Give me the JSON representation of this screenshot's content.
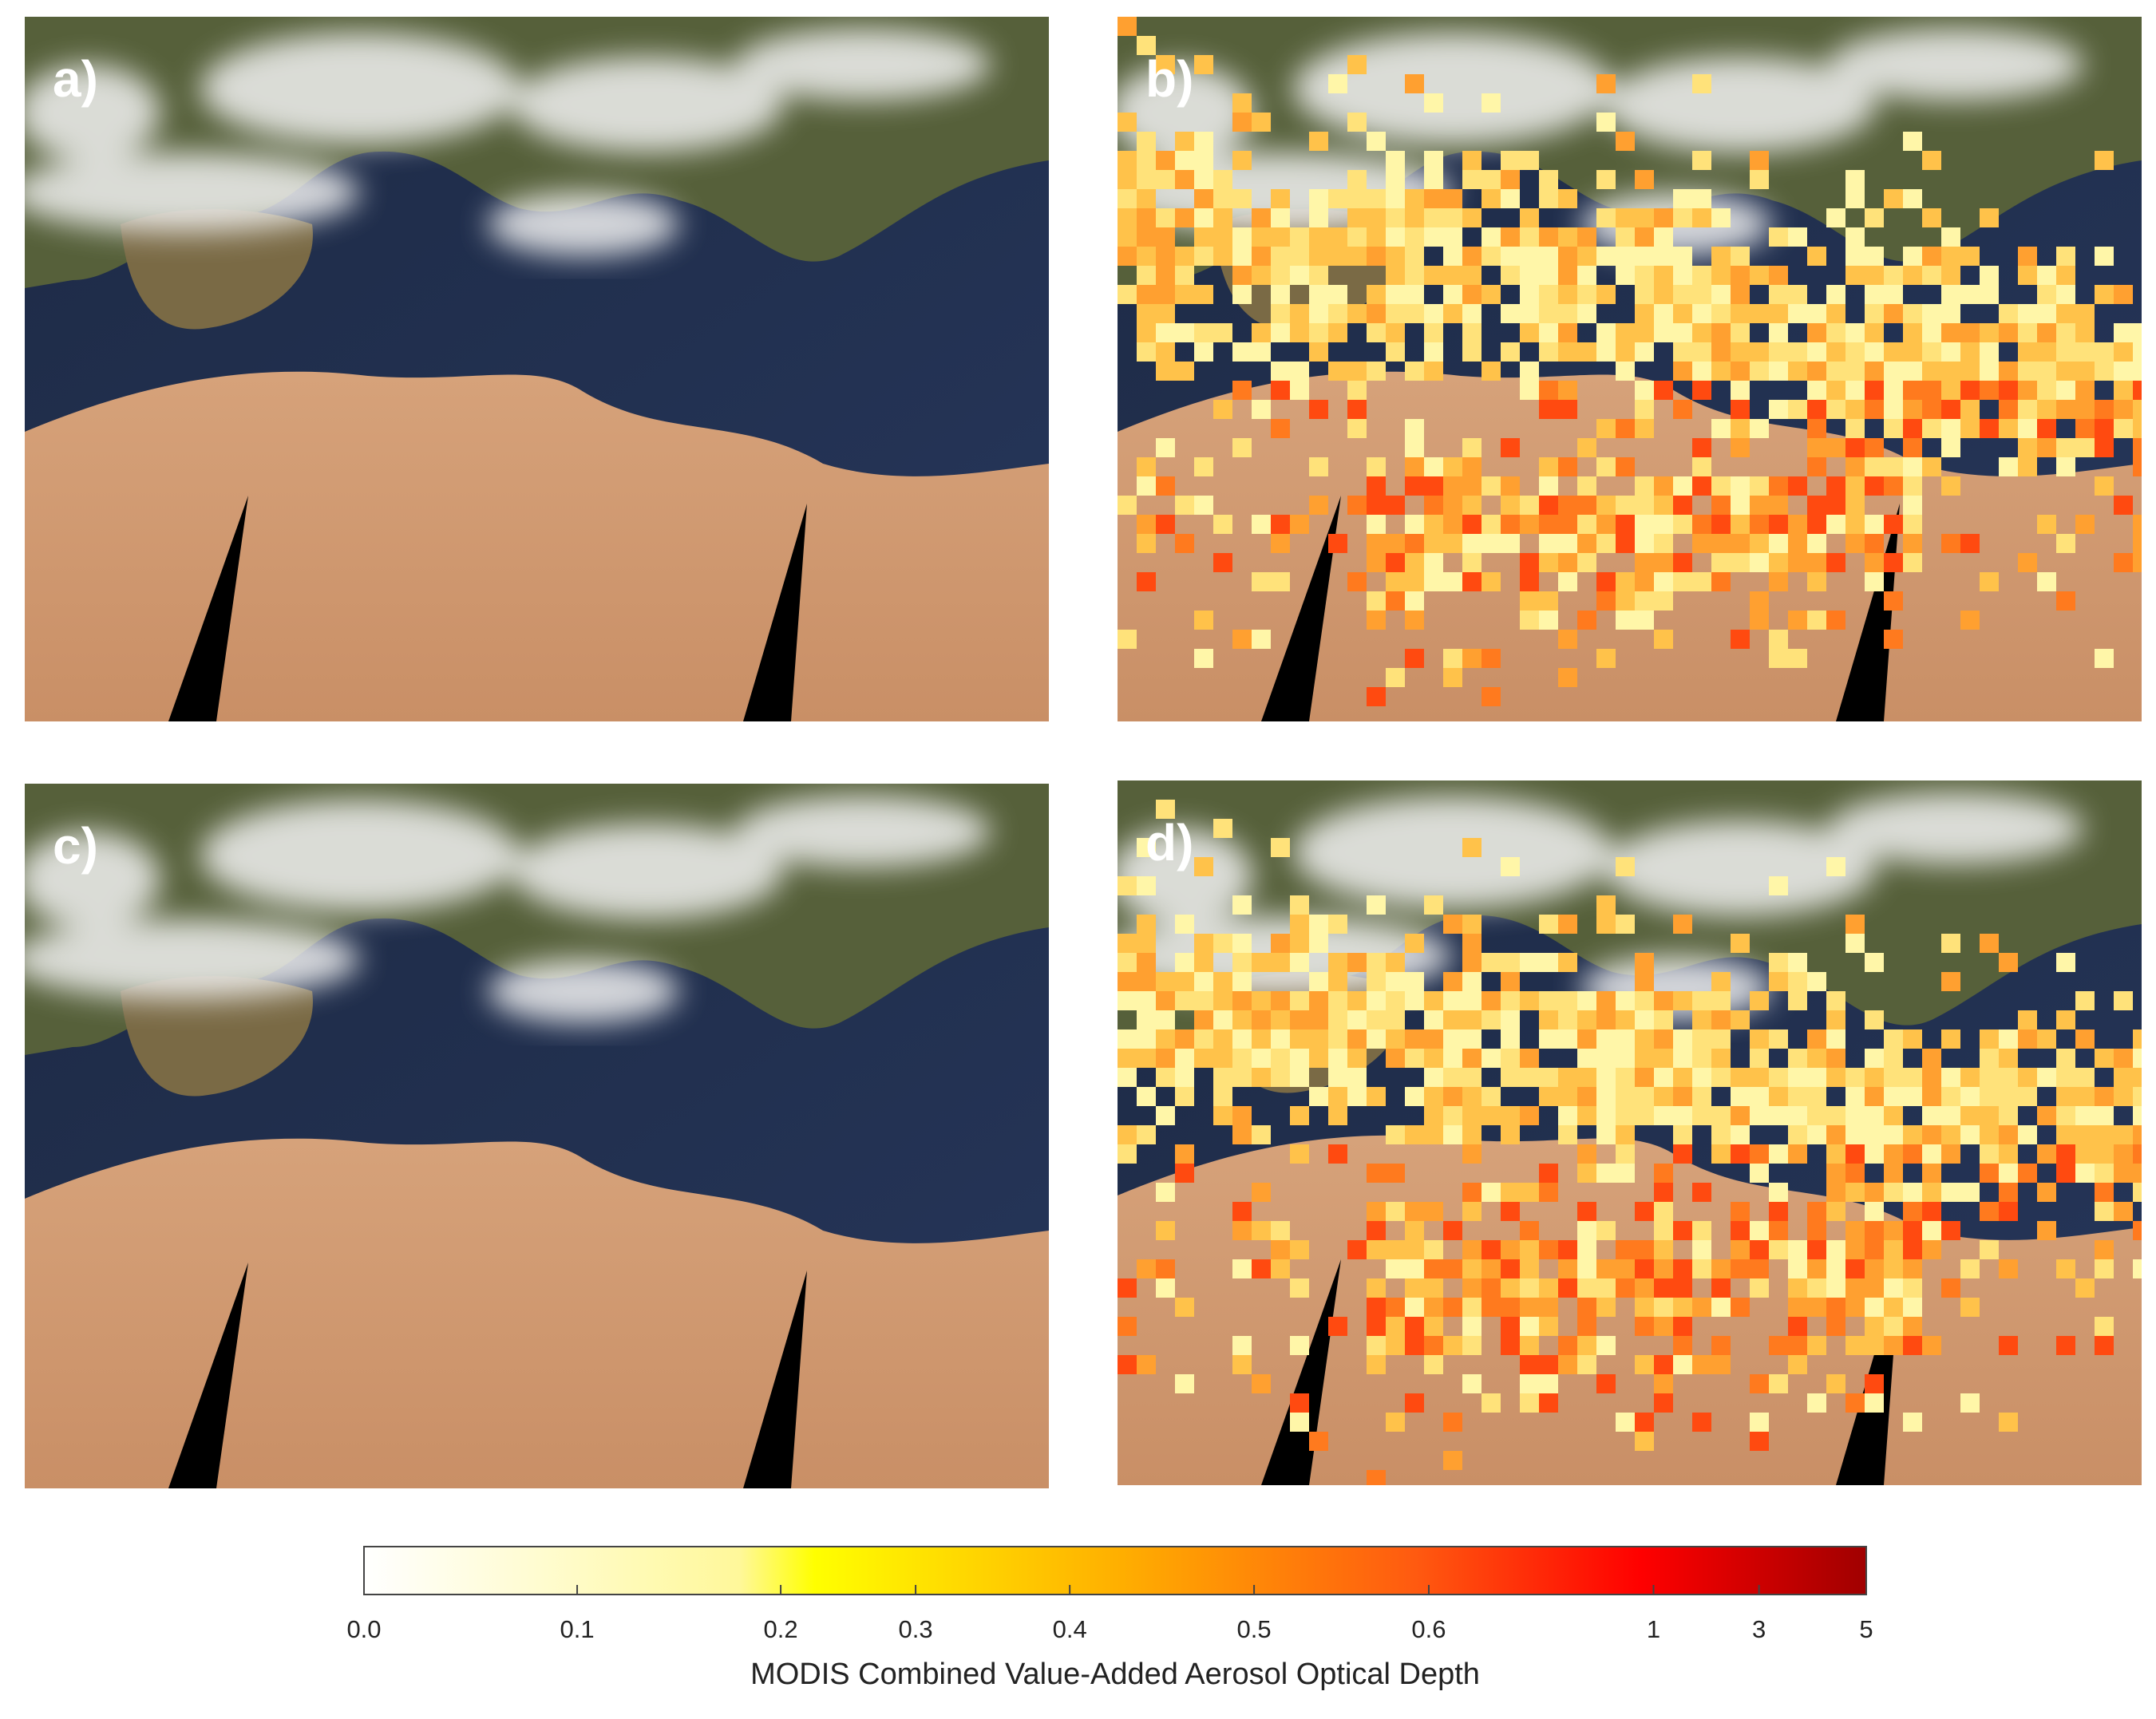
{
  "panels": [
    {
      "label": "a)"
    },
    {
      "label": "b)"
    },
    {
      "label": "c)"
    },
    {
      "label": "d)"
    }
  ],
  "colorbar": {
    "ticks": [
      {
        "value": 0,
        "label": "0.0"
      },
      0.1,
      0.2,
      0.3,
      0.4,
      0.5,
      0.6,
      1,
      3,
      5
    ],
    "label": "MODIS Combined Value-Added Aerosol Optical Depth"
  }
}
